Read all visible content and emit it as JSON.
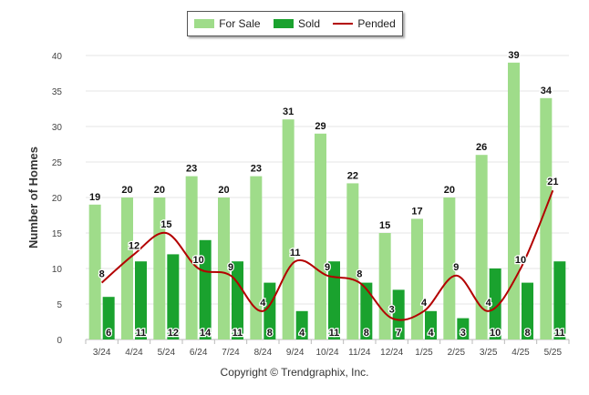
{
  "chart_data": {
    "type": "bar",
    "categories": [
      "3/24",
      "4/24",
      "5/24",
      "6/24",
      "7/24",
      "8/24",
      "9/24",
      "10/24",
      "11/24",
      "12/24",
      "1/25",
      "2/25",
      "3/25",
      "4/25",
      "5/25"
    ],
    "series": [
      {
        "name": "For Sale",
        "type": "bar",
        "color": "#9fdc8a",
        "values": [
          19,
          20,
          20,
          23,
          20,
          23,
          31,
          29,
          22,
          15,
          17,
          20,
          26,
          39,
          34
        ]
      },
      {
        "name": "Sold",
        "type": "bar",
        "color": "#1aa22e",
        "values": [
          6,
          11,
          12,
          14,
          11,
          8,
          4,
          11,
          8,
          7,
          4,
          3,
          10,
          8,
          11
        ]
      },
      {
        "name": "Pended",
        "type": "line",
        "color": "#b30000",
        "values": [
          8,
          12,
          15,
          10,
          9,
          4,
          11,
          9,
          8,
          3,
          4,
          9,
          4,
          10,
          21
        ]
      }
    ],
    "ylabel": "Number of Homes",
    "ylim": [
      0,
      40
    ],
    "yticks": [
      0,
      5,
      10,
      15,
      20,
      25,
      30,
      35,
      40
    ],
    "grid": true,
    "legend_position": "top-center"
  },
  "credit": "Copyright © Trendgraphix, Inc."
}
